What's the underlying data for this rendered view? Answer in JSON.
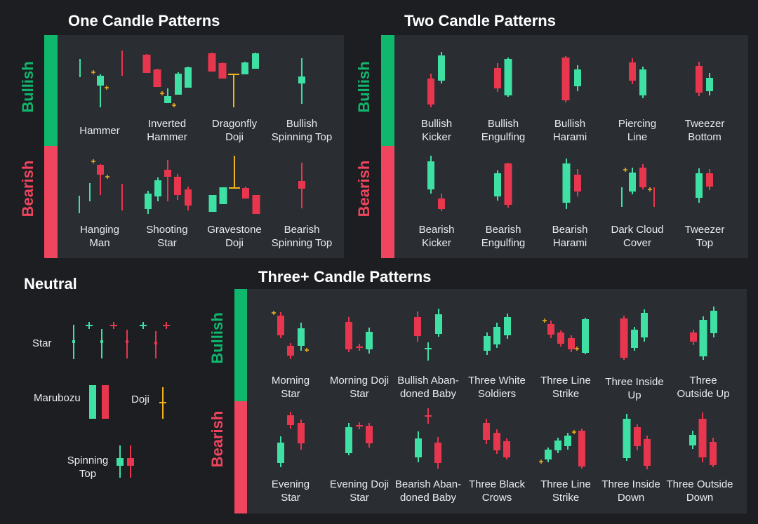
{
  "colors": {
    "bull": "#3ee0a4",
    "bear": "#e8364f",
    "doji": "#f2b41e",
    "band_green": "#0fb86d",
    "band_red": "#f0455e",
    "panel": "#2a2e33",
    "bg": "#1c1e22"
  },
  "sections": {
    "one": {
      "title": "One Candle Patterns",
      "bullish": "Bullish",
      "bearish": "Bearish"
    },
    "two": {
      "title": "Two Candle Patterns",
      "bullish": "Bullish",
      "bearish": "Bearish"
    },
    "three": {
      "title": "Three+ Candle Patterns",
      "bullish": "Bullish",
      "bearish": "Bearish"
    },
    "neutral": {
      "title": "Neutral"
    }
  },
  "patterns": {
    "one_bull": [
      "Hammer",
      "Inverted\nHammer",
      "Dragonfly\nDoji",
      "Bullish\nSpinning Top"
    ],
    "one_bear": [
      "Hanging\nMan",
      "Shooting\nStar",
      "Gravestone\nDoji",
      "Bearish\nSpinning Top"
    ],
    "two_bull": [
      "Bullish\nKicker",
      "Bullish\nEngulfing",
      "Bullish\nHarami",
      "Piercing\nLine",
      "Tweezer\nBottom"
    ],
    "two_bear": [
      "Bearish\nKicker",
      "Bearish\nEngulfing",
      "Bearish\nHarami",
      "Dark Cloud\nCover",
      "Tweezer\nTop"
    ],
    "three_bull": [
      "Morning\nStar",
      "Morning Doji\nStar",
      "Bullish Aban-\ndoned Baby",
      "Three White\nSoldiers",
      "Three Line\nStrike",
      "Three Inside\nUp",
      "Three\nOutside Up"
    ],
    "three_bear": [
      "Evening\nStar",
      "Evening Doji\nStar",
      "Bearish Aban-\ndoned Baby",
      "Three Black\nCrows",
      "Three Line\nStrike",
      "Three Inside\nDown",
      "Three Outside\nDown"
    ]
  },
  "neutral": {
    "star": "Star",
    "marubozu": "Marubozu",
    "doji": "Doji",
    "spinning_top": "Spinning\nTop"
  }
}
